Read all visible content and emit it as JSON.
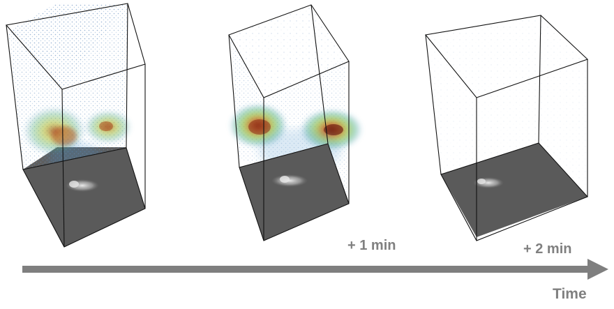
{
  "panels": [
    {
      "name": "t0",
      "label": "",
      "intensity": 1.0
    },
    {
      "name": "t1",
      "label": "+ 1 min",
      "intensity": 1.35
    },
    {
      "name": "t2",
      "label": "+ 2 min",
      "intensity": 0.1
    }
  ],
  "axis": {
    "label": "Time"
  },
  "colors": {
    "box_edge": "#111111",
    "floor": "#5a5a5a",
    "arrow": "#7f7f7f",
    "label": "#808080",
    "colormap": [
      "#3a6fb0",
      "#4aa0c8",
      "#5bbf7a",
      "#b6c83a",
      "#e08a2a",
      "#b0301c"
    ]
  }
}
